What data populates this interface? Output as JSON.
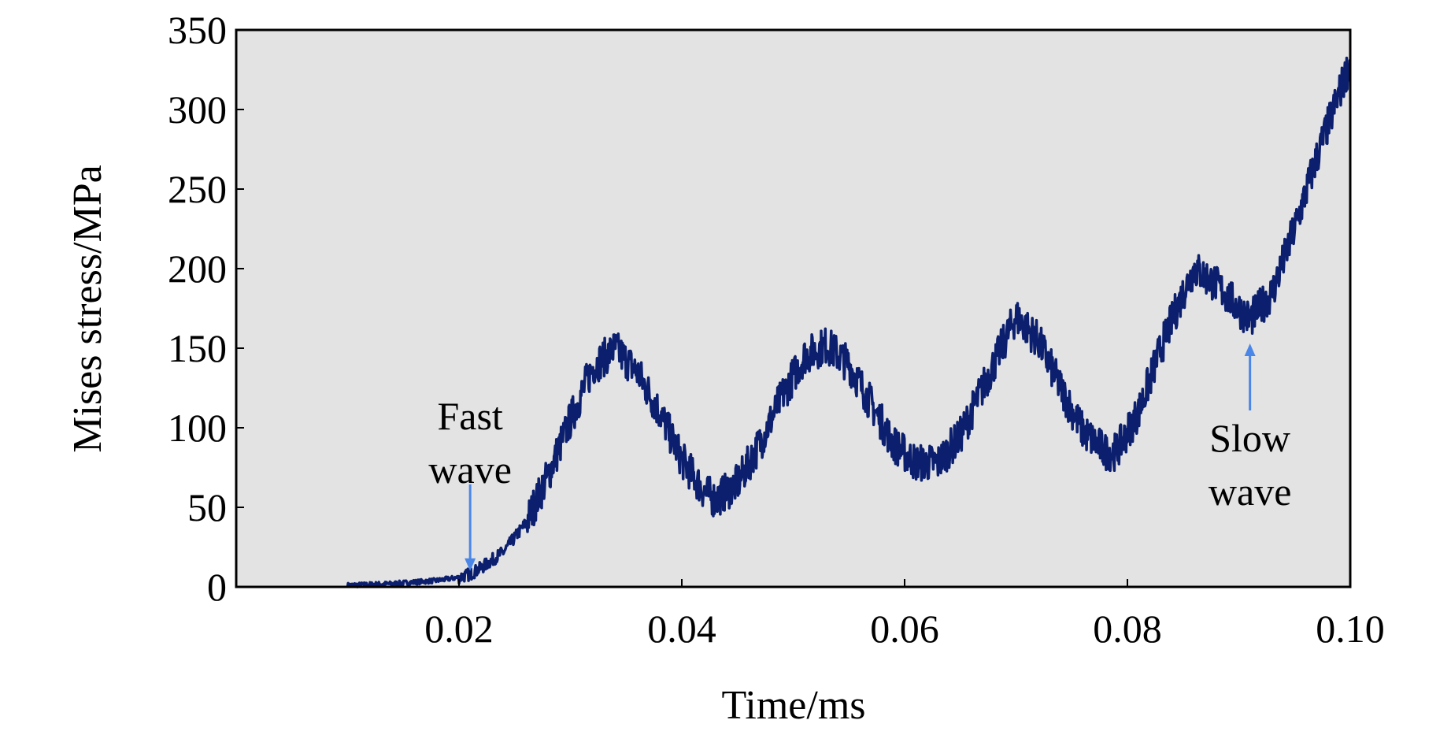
{
  "chart_data": {
    "type": "line",
    "title": "",
    "xlabel": "Time/ms",
    "ylabel": "Mises stress/MPa",
    "xlim": [
      0.0,
      0.1
    ],
    "ylim": [
      0,
      350
    ],
    "xticks": [
      0.02,
      0.04,
      0.06,
      0.08,
      0.1
    ],
    "xtick_labels": [
      "0.02",
      "0.04",
      "0.06",
      "0.08",
      "0.10"
    ],
    "yticks": [
      0,
      50,
      100,
      150,
      200,
      250,
      300,
      350
    ],
    "ytick_labels": [
      "0",
      "50",
      "100",
      "150",
      "200",
      "250",
      "300",
      "350"
    ],
    "grid": false,
    "plot_background": "#e3e3e3",
    "series": [
      {
        "color": "#0b1f6e",
        "x": [
          0.01,
          0.014,
          0.018,
          0.02,
          0.021,
          0.022,
          0.024,
          0.026,
          0.028,
          0.03,
          0.032,
          0.034,
          0.036,
          0.038,
          0.04,
          0.042,
          0.043,
          0.045,
          0.047,
          0.049,
          0.051,
          0.053,
          0.055,
          0.057,
          0.059,
          0.061,
          0.063,
          0.065,
          0.067,
          0.069,
          0.07,
          0.072,
          0.074,
          0.076,
          0.078,
          0.079,
          0.081,
          0.083,
          0.085,
          0.086,
          0.088,
          0.09,
          0.091,
          0.093,
          0.095,
          0.097,
          0.099,
          0.1
        ],
        "y": [
          1,
          2,
          4,
          6,
          8,
          12,
          22,
          40,
          70,
          105,
          138,
          150,
          135,
          110,
          80,
          60,
          55,
          65,
          90,
          120,
          145,
          152,
          140,
          115,
          90,
          78,
          78,
          95,
          125,
          155,
          170,
          155,
          125,
          98,
          85,
          85,
          110,
          150,
          185,
          200,
          190,
          175,
          168,
          185,
          225,
          270,
          310,
          330
        ]
      }
    ],
    "annotations": [
      {
        "lines": [
          "Fast",
          "wave"
        ],
        "arrow_to": [
          0.021,
          10
        ],
        "arrow_direction": "down",
        "color": "#4a86e8"
      },
      {
        "lines": [
          "Slow",
          "wave"
        ],
        "arrow_to": [
          0.091,
          153
        ],
        "arrow_direction": "up",
        "color": "#4a86e8"
      }
    ]
  }
}
